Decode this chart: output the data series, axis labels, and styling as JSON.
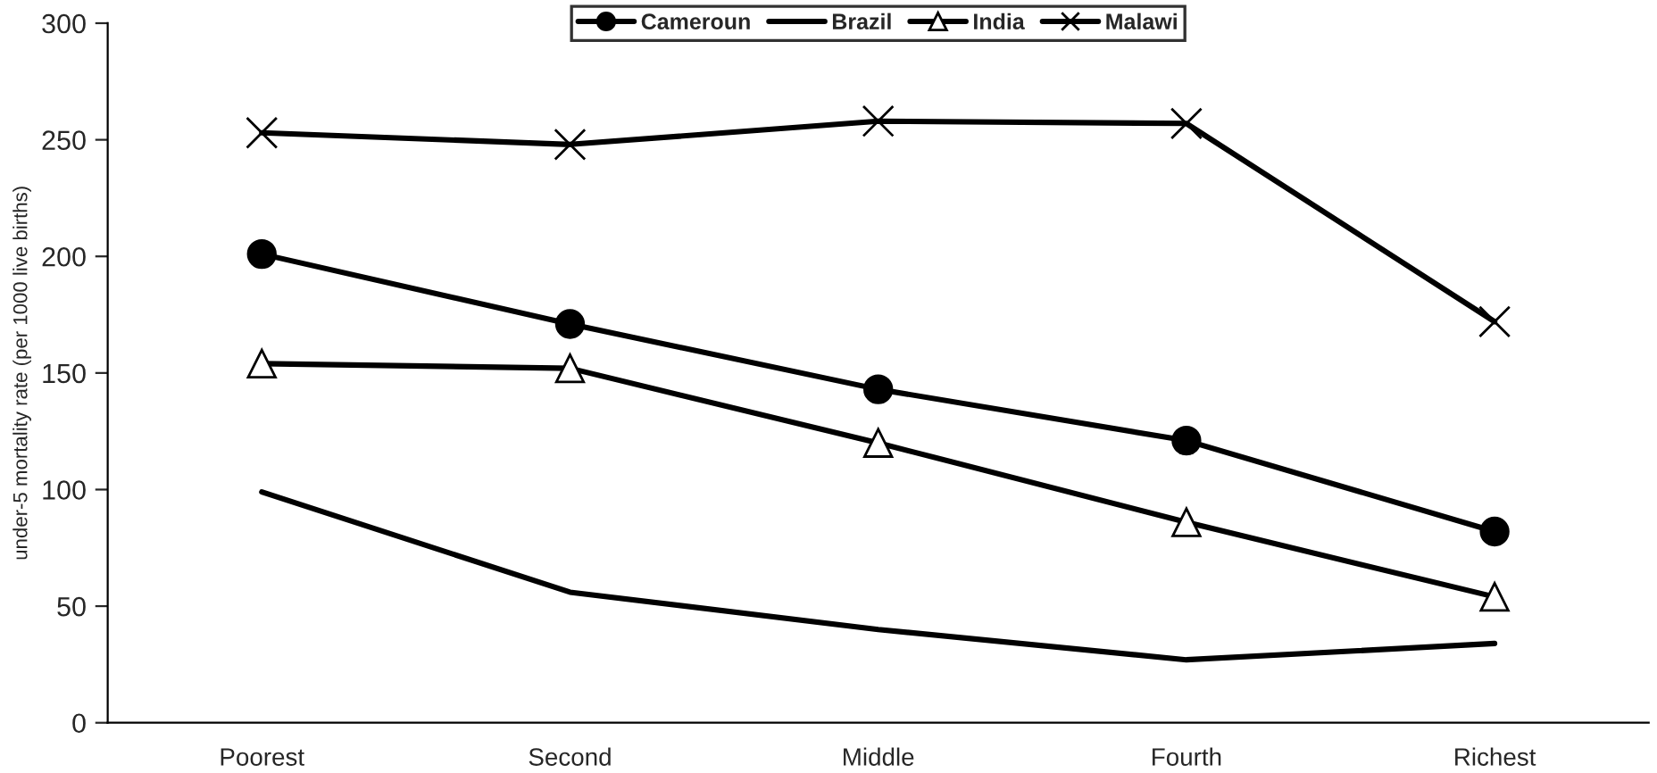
{
  "chart_data": {
    "type": "line",
    "ylabel": "under-5 mortality rate (per 1000 live births)",
    "categories": [
      "Poorest",
      "Second",
      "Middle",
      "Fourth",
      "Richest"
    ],
    "series": [
      {
        "name": "Cameroun",
        "color": "#000000",
        "marker": "circle",
        "values": [
          201,
          171,
          143,
          121,
          82
        ]
      },
      {
        "name": "Brazil",
        "color": "#000000",
        "marker": "none",
        "values": [
          99,
          56,
          40,
          27,
          34
        ]
      },
      {
        "name": "India",
        "color": "#000000",
        "marker": "triangle",
        "values": [
          154,
          152,
          120,
          86,
          54
        ]
      },
      {
        "name": "Malawi",
        "color": "#000000",
        "marker": "cross",
        "values": [
          253,
          248,
          258,
          257,
          172
        ]
      }
    ],
    "ylim": [
      0,
      300
    ],
    "yticks": [
      0,
      50,
      100,
      150,
      200,
      250,
      300
    ],
    "grid": false,
    "legend": "top",
    "line_style": "solid"
  }
}
